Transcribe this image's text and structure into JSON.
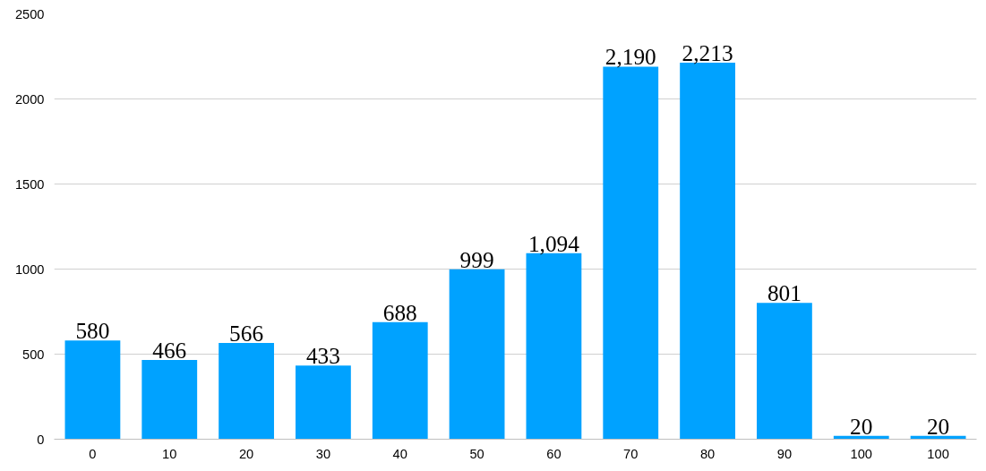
{
  "chart_data": {
    "type": "bar",
    "categories": [
      "0",
      "10",
      "20",
      "30",
      "40",
      "50",
      "60",
      "70",
      "80",
      "90",
      "100",
      "100"
    ],
    "values": [
      580,
      466,
      566,
      433,
      688,
      999,
      1094,
      2190,
      2213,
      801,
      20,
      20
    ],
    "value_labels": [
      "580",
      "466",
      "566",
      "433",
      "688",
      "999",
      "1,094",
      "2,190",
      "2,213",
      "801",
      "20",
      "20"
    ],
    "color": "#00a2ff",
    "ylim": [
      0,
      2500
    ],
    "yticks": [
      0,
      500,
      1000,
      1500,
      2000,
      2500
    ],
    "grid": "y"
  }
}
